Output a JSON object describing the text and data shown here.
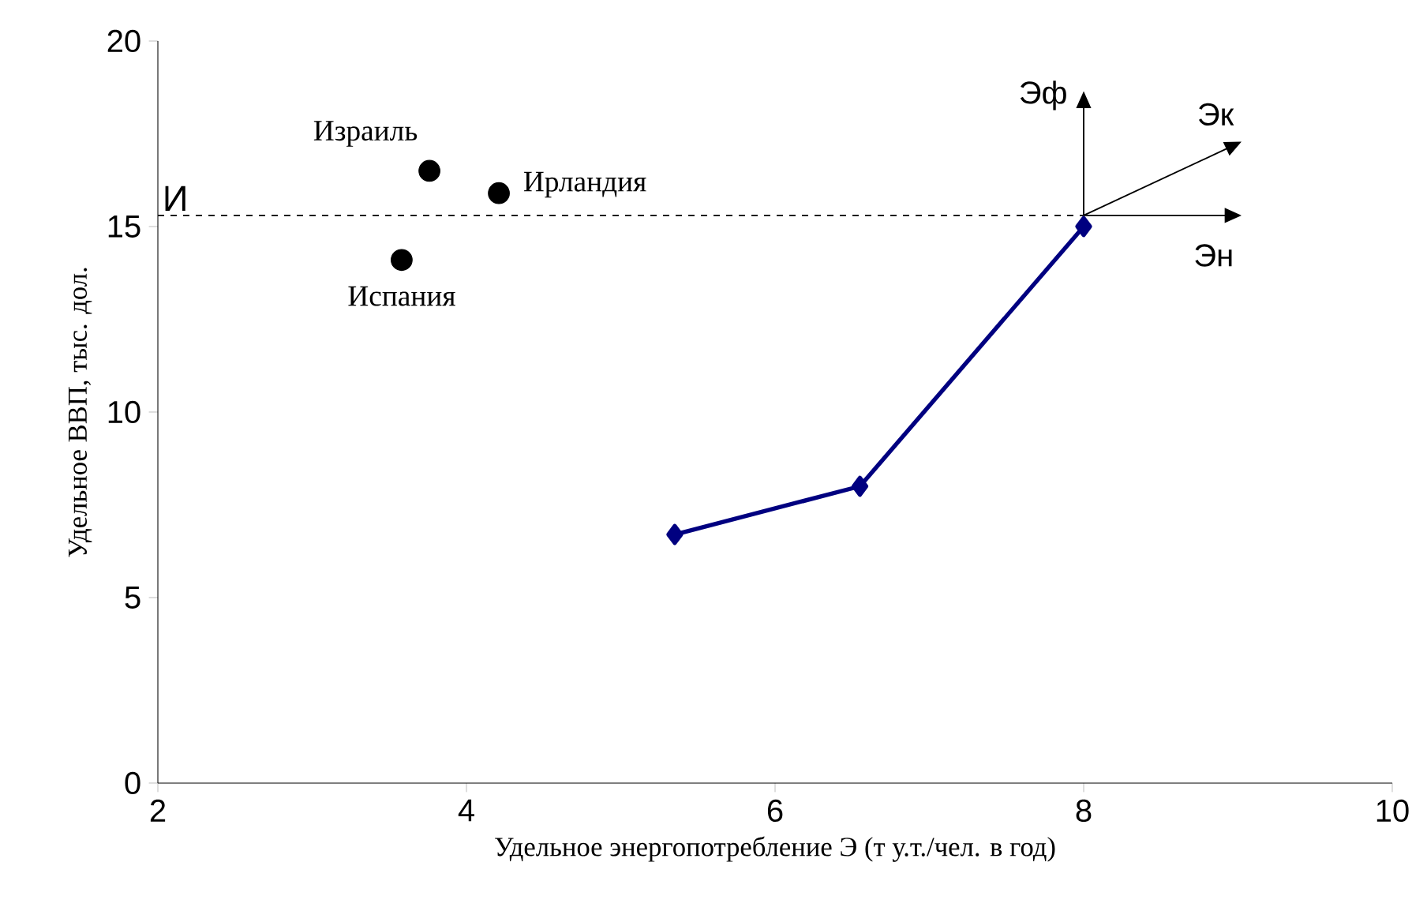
{
  "chart_data": {
    "type": "line",
    "xlabel": "Удельное энергопотребление Э (т у.т./чел. в год)",
    "ylabel": "Удельное ВВП, тыс. дол.",
    "xlim": [
      2,
      10
    ],
    "xticks": [
      2,
      4,
      6,
      8,
      10
    ],
    "ylim": [
      0,
      20
    ],
    "yticks": [
      0,
      5,
      10,
      15,
      20
    ],
    "series": [
      {
        "x": [
          5.35,
          6.55,
          8.0
        ],
        "values": [
          6.7,
          8.0,
          15.0
        ],
        "color": "#000080",
        "marker": "diamond"
      },
      {
        "type": "scatter",
        "name": "Израиль",
        "x": [
          3.76
        ],
        "values": [
          16.5
        ],
        "color": "#000000",
        "marker": "circle"
      },
      {
        "type": "scatter",
        "name": "Ирландия",
        "x": [
          4.21
        ],
        "values": [
          15.9
        ],
        "color": "#000000",
        "marker": "circle"
      },
      {
        "type": "scatter",
        "name": "Испания",
        "x": [
          3.58
        ],
        "values": [
          14.1
        ],
        "color": "#000000",
        "marker": "circle"
      }
    ],
    "ref_lines": [
      {
        "axis": "y",
        "value": 15.3,
        "label": "И",
        "line_style": "dashed",
        "color": "#000000"
      }
    ],
    "annotations": [
      "Эф",
      "Эк",
      "Эн"
    ]
  }
}
